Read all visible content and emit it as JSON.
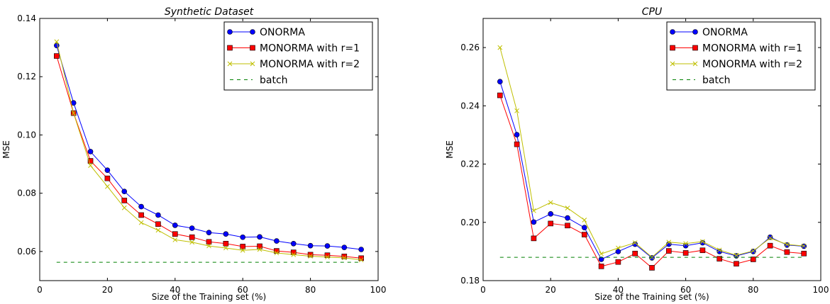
{
  "chart_data": [
    {
      "type": "line",
      "title": "Synthetic Dataset",
      "xlabel": "Size of the Training set (%)",
      "ylabel": "MSE",
      "xlim": [
        0,
        100
      ],
      "ylim": [
        0.05,
        0.14
      ],
      "xticks": [
        "0",
        "20",
        "40",
        "60",
        "80",
        "100"
      ],
      "xtick_values": [
        0,
        20,
        40,
        60,
        80,
        100
      ],
      "yticks": [
        "0.06",
        "0.08",
        "0.10",
        "0.12",
        "0.14"
      ],
      "ytick_values": [
        0.06,
        0.08,
        0.1,
        0.12,
        0.14
      ],
      "grid": false,
      "legend_position": "top-right",
      "x": [
        5,
        10,
        15,
        20,
        25,
        30,
        35,
        40,
        45,
        50,
        55,
        60,
        65,
        70,
        75,
        80,
        85,
        90,
        95
      ],
      "series": [
        {
          "name": "ONORMA",
          "color": "#0000ff",
          "marker": "circle",
          "style": "solid",
          "values": [
            0.1307,
            0.111,
            0.0943,
            0.0879,
            0.0806,
            0.0754,
            0.0725,
            0.069,
            0.068,
            0.0665,
            0.066,
            0.0649,
            0.065,
            0.0636,
            0.0627,
            0.062,
            0.0619,
            0.0614,
            0.0607
          ]
        },
        {
          "name": "MONORMA with r=1",
          "color": "#ff0000",
          "marker": "square",
          "style": "solid",
          "values": [
            0.1271,
            0.1075,
            0.0911,
            0.0851,
            0.0775,
            0.0725,
            0.0694,
            0.066,
            0.0649,
            0.0633,
            0.0627,
            0.0617,
            0.0618,
            0.0602,
            0.0597,
            0.0589,
            0.0587,
            0.0583,
            0.0577
          ]
        },
        {
          "name": "MONORMA with r=2",
          "color": "#bfbf00",
          "marker": "x",
          "style": "solid",
          "values": [
            0.132,
            0.1075,
            0.0895,
            0.0823,
            0.075,
            0.0699,
            0.0673,
            0.064,
            0.0632,
            0.0619,
            0.0612,
            0.0604,
            0.0607,
            0.0595,
            0.0589,
            0.0584,
            0.0581,
            0.0578,
            0.0571
          ]
        },
        {
          "name": "batch",
          "color": "#008000",
          "marker": "none",
          "style": "dashed",
          "values": [
            0.0563,
            0.0563,
            0.0563,
            0.0563,
            0.0563,
            0.0563,
            0.0563,
            0.0563,
            0.0563,
            0.0563,
            0.0563,
            0.0563,
            0.0563,
            0.0563,
            0.0563,
            0.0563,
            0.0563,
            0.0563,
            0.0563
          ]
        }
      ]
    },
    {
      "type": "line",
      "title": "CPU",
      "xlabel": "Size of the Training set (%)",
      "ylabel": "MSE",
      "xlim": [
        0,
        100
      ],
      "ylim": [
        0.18,
        0.27
      ],
      "xticks": [
        "0",
        "20",
        "40",
        "60",
        "80",
        "100"
      ],
      "xtick_values": [
        0,
        20,
        40,
        60,
        80,
        100
      ],
      "yticks": [
        "0.18",
        "0.20",
        "0.22",
        "0.24",
        "0.26"
      ],
      "ytick_values": [
        0.18,
        0.2,
        0.22,
        0.24,
        0.26
      ],
      "grid": false,
      "legend_position": "top-right",
      "x": [
        5,
        10,
        15,
        20,
        25,
        30,
        35,
        40,
        45,
        50,
        55,
        60,
        65,
        70,
        75,
        80,
        85,
        90,
        95
      ],
      "series": [
        {
          "name": "ONORMA",
          "color": "#0000ff",
          "marker": "circle",
          "style": "solid",
          "values": [
            0.2483,
            0.2301,
            0.2001,
            0.2029,
            0.2015,
            0.1982,
            0.1873,
            0.19,
            0.1925,
            0.1878,
            0.1925,
            0.192,
            0.193,
            0.19,
            0.1885,
            0.19,
            0.1949,
            0.1922,
            0.1918
          ]
        },
        {
          "name": "MONORMA with r=1",
          "color": "#ff0000",
          "marker": "square",
          "style": "solid",
          "values": [
            0.2436,
            0.2268,
            0.1945,
            0.1996,
            0.1989,
            0.1958,
            0.1849,
            0.1864,
            0.1893,
            0.1844,
            0.1902,
            0.1895,
            0.1904,
            0.1875,
            0.1858,
            0.1873,
            0.192,
            0.1898,
            0.1893
          ]
        },
        {
          "name": "MONORMA with r=2",
          "color": "#bfbf00",
          "marker": "x",
          "style": "solid",
          "values": [
            0.26,
            0.2383,
            0.204,
            0.2068,
            0.2049,
            0.2008,
            0.1892,
            0.1912,
            0.193,
            0.188,
            0.1932,
            0.1927,
            0.1934,
            0.1905,
            0.1887,
            0.1902,
            0.1946,
            0.1924,
            0.1919
          ]
        },
        {
          "name": "batch",
          "color": "#008000",
          "marker": "none",
          "style": "dashed",
          "values": [
            0.188,
            0.188,
            0.188,
            0.188,
            0.188,
            0.188,
            0.188,
            0.188,
            0.188,
            0.188,
            0.188,
            0.188,
            0.188,
            0.188,
            0.188,
            0.188,
            0.188,
            0.188,
            0.188
          ]
        }
      ]
    }
  ]
}
